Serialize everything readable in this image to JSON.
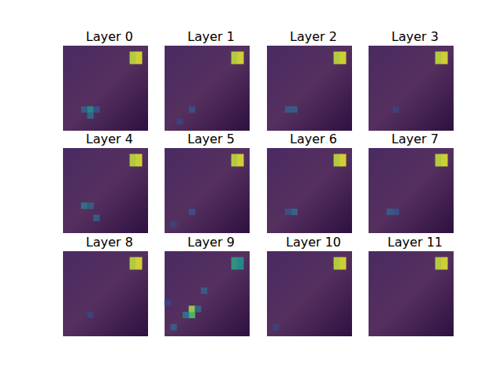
{
  "chart_data": [
    {
      "type": "heatmap",
      "title": "Layer 0",
      "grid_size": 14,
      "value_range": [
        0,
        1
      ],
      "tick_labels": false,
      "cells": [
        [
          11,
          1,
          0.9
        ],
        [
          12,
          1,
          0.95
        ],
        [
          11,
          2,
          0.9
        ],
        [
          12,
          2,
          0.95
        ],
        [
          4,
          10,
          0.5
        ],
        [
          3,
          10,
          0.3
        ],
        [
          4,
          11,
          0.35
        ],
        [
          5,
          10,
          0.25
        ]
      ]
    },
    {
      "type": "heatmap",
      "title": "Layer 1",
      "grid_size": 14,
      "value_range": [
        0,
        1
      ],
      "tick_labels": false,
      "cells": [
        [
          11,
          1,
          0.9
        ],
        [
          12,
          1,
          0.95
        ],
        [
          11,
          2,
          0.9
        ],
        [
          12,
          2,
          0.95
        ],
        [
          4,
          10,
          0.25
        ],
        [
          2,
          12,
          0.2
        ]
      ]
    },
    {
      "type": "heatmap",
      "title": "Layer 2",
      "grid_size": 14,
      "value_range": [
        0,
        1
      ],
      "tick_labels": false,
      "cells": [
        [
          11,
          1,
          0.9
        ],
        [
          12,
          1,
          0.95
        ],
        [
          11,
          2,
          0.9
        ],
        [
          12,
          2,
          0.95
        ],
        [
          3,
          10,
          0.3
        ],
        [
          4,
          10,
          0.3
        ]
      ]
    },
    {
      "type": "heatmap",
      "title": "Layer 3",
      "grid_size": 14,
      "value_range": [
        0,
        1
      ],
      "tick_labels": false,
      "cells": [
        [
          11,
          1,
          0.9
        ],
        [
          12,
          1,
          0.95
        ],
        [
          11,
          2,
          0.9
        ],
        [
          12,
          2,
          0.95
        ],
        [
          4,
          10,
          0.2
        ]
      ]
    },
    {
      "type": "heatmap",
      "title": "Layer 4",
      "grid_size": 14,
      "value_range": [
        0,
        1
      ],
      "tick_labels": false,
      "cells": [
        [
          11,
          1,
          0.9
        ],
        [
          12,
          1,
          0.95
        ],
        [
          11,
          2,
          0.9
        ],
        [
          12,
          2,
          0.95
        ],
        [
          3,
          9,
          0.4
        ],
        [
          4,
          9,
          0.3
        ],
        [
          5,
          11,
          0.3
        ]
      ]
    },
    {
      "type": "heatmap",
      "title": "Layer 5",
      "grid_size": 14,
      "value_range": [
        0,
        1
      ],
      "tick_labels": false,
      "cells": [
        [
          11,
          1,
          0.9
        ],
        [
          12,
          1,
          0.95
        ],
        [
          11,
          2,
          0.9
        ],
        [
          12,
          2,
          0.95
        ],
        [
          4,
          10,
          0.25
        ],
        [
          1,
          12,
          0.2
        ]
      ]
    },
    {
      "type": "heatmap",
      "title": "Layer 6",
      "grid_size": 14,
      "value_range": [
        0,
        1
      ],
      "tick_labels": false,
      "cells": [
        [
          11,
          1,
          0.9
        ],
        [
          12,
          1,
          0.95
        ],
        [
          11,
          2,
          0.9
        ],
        [
          12,
          2,
          0.95
        ],
        [
          4,
          10,
          0.35
        ],
        [
          3,
          10,
          0.25
        ]
      ]
    },
    {
      "type": "heatmap",
      "title": "Layer 7",
      "grid_size": 14,
      "value_range": [
        0,
        1
      ],
      "tick_labels": false,
      "cells": [
        [
          11,
          1,
          0.9
        ],
        [
          12,
          1,
          0.95
        ],
        [
          11,
          2,
          0.9
        ],
        [
          12,
          2,
          0.95
        ],
        [
          3,
          10,
          0.3
        ],
        [
          4,
          10,
          0.25
        ]
      ]
    },
    {
      "type": "heatmap",
      "title": "Layer 8",
      "grid_size": 14,
      "value_range": [
        0,
        1
      ],
      "tick_labels": false,
      "cells": [
        [
          11,
          1,
          0.9
        ],
        [
          12,
          1,
          0.95
        ],
        [
          11,
          2,
          0.9
        ],
        [
          12,
          2,
          0.95
        ],
        [
          4,
          10,
          0.2
        ]
      ]
    },
    {
      "type": "heatmap",
      "title": "Layer 9",
      "grid_size": 14,
      "value_range": [
        0,
        1
      ],
      "tick_labels": false,
      "cells": [
        [
          11,
          1,
          0.55
        ],
        [
          12,
          1,
          0.5
        ],
        [
          11,
          2,
          0.55
        ],
        [
          12,
          2,
          0.5
        ],
        [
          4,
          9,
          0.85
        ],
        [
          4,
          10,
          0.7
        ],
        [
          3,
          10,
          0.4
        ],
        [
          5,
          9,
          0.35
        ],
        [
          6,
          6,
          0.3
        ],
        [
          1,
          12,
          0.3
        ],
        [
          0,
          8,
          0.2
        ]
      ]
    },
    {
      "type": "heatmap",
      "title": "Layer 10",
      "grid_size": 14,
      "value_range": [
        0,
        1
      ],
      "tick_labels": false,
      "cells": [
        [
          11,
          1,
          0.9
        ],
        [
          12,
          1,
          0.95
        ],
        [
          11,
          2,
          0.9
        ],
        [
          12,
          2,
          0.95
        ],
        [
          1,
          12,
          0.2
        ]
      ]
    },
    {
      "type": "heatmap",
      "title": "Layer 11",
      "grid_size": 14,
      "value_range": [
        0,
        1
      ],
      "tick_labels": false,
      "cells": [
        [
          11,
          1,
          0.9
        ],
        [
          12,
          1,
          0.95
        ],
        [
          11,
          2,
          0.9
        ],
        [
          12,
          2,
          0.95
        ]
      ]
    }
  ]
}
